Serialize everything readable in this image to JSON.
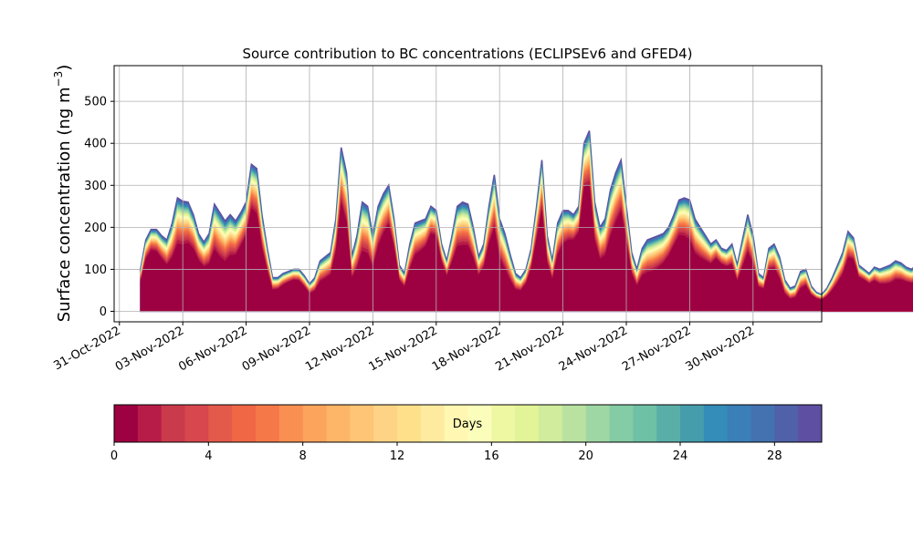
{
  "chart_data": {
    "type": "area",
    "title": "Source contribution to BC concentrations (ECLIPSEv6 and GFED4)",
    "ylabel": "Surface concentration (ng m",
    "ylabel_sup": "−3",
    "ylabel_close": ")",
    "xlabel": "",
    "x_start": "2022-11-01T00:00",
    "x_step_hours": 6,
    "xlim": [
      "2022-10-30T18:00",
      "2022-12-03T06:00"
    ],
    "ylim": [
      -25,
      585
    ],
    "yticks": [
      0,
      100,
      200,
      300,
      400,
      500
    ],
    "xticks": [
      "2022-10-31",
      "2022-11-03",
      "2022-11-06",
      "2022-11-09",
      "2022-11-12",
      "2022-11-15",
      "2022-11-18",
      "2022-11-21",
      "2022-11-24",
      "2022-11-27",
      "2022-11-30"
    ],
    "xtick_labels": [
      "31-Oct-2022",
      "03-Nov-2022",
      "06-Nov-2022",
      "09-Nov-2022",
      "12-Nov-2022",
      "15-Nov-2022",
      "18-Nov-2022",
      "21-Nov-2022",
      "24-Nov-2022",
      "27-Nov-2022",
      "30-Nov-2022"
    ],
    "grid": true,
    "total": [
      100,
      170,
      195,
      195,
      180,
      170,
      210,
      270,
      262,
      260,
      230,
      185,
      165,
      185,
      255,
      235,
      215,
      230,
      215,
      235,
      260,
      350,
      340,
      230,
      150,
      80,
      80,
      90,
      95,
      100,
      100,
      85,
      65,
      80,
      120,
      130,
      140,
      220,
      390,
      330,
      130,
      180,
      260,
      250,
      180,
      250,
      280,
      300,
      220,
      110,
      90,
      160,
      210,
      215,
      220,
      250,
      240,
      160,
      120,
      180,
      250,
      260,
      255,
      200,
      130,
      160,
      250,
      325,
      220,
      185,
      135,
      90,
      80,
      100,
      150,
      250,
      360,
      180,
      120,
      210,
      240,
      240,
      230,
      250,
      400,
      430,
      260,
      200,
      220,
      290,
      330,
      360,
      250,
      140,
      100,
      150,
      170,
      175,
      180,
      185,
      200,
      230,
      265,
      270,
      265,
      220,
      200,
      180,
      160,
      170,
      150,
      145,
      160,
      110,
      170,
      230,
      180,
      90,
      80,
      150,
      160,
      130,
      75,
      55,
      60,
      95,
      100,
      60,
      45,
      40,
      55,
      80,
      110,
      140,
      190,
      175,
      110,
      100,
      90,
      105,
      100,
      105,
      110,
      120,
      115,
      105,
      100,
      110,
      120,
      125,
      120,
      140,
      90,
      50,
      40,
      40,
      40,
      50,
      80,
      160,
      90,
      90,
      80,
      85,
      100,
      95,
      80,
      100,
      150,
      190,
      290,
      320,
      180,
      150,
      130,
      100,
      140,
      100,
      95,
      150,
      220,
      330,
      420,
      530,
      440,
      250,
      220,
      130,
      100,
      110,
      150,
      250,
      330,
      260,
      150,
      110,
      100,
      100,
      120,
      210,
      250,
      290,
      320,
      325,
      350,
      380,
      410
    ],
    "colorbar": {
      "label": "Days",
      "min": 0,
      "max": 30,
      "ticks": [
        0,
        4,
        8,
        12,
        16,
        20,
        24,
        28
      ],
      "colors": [
        "#9e0142",
        "#b71c48",
        "#c93a4b",
        "#d8474d",
        "#e35a4a",
        "#ef6745",
        "#f57848",
        "#f98f51",
        "#fca35c",
        "#fdb567",
        "#fec576",
        "#fed385",
        "#fee08b",
        "#feeba0",
        "#fff7b2",
        "#fbfdbb",
        "#eef8a3",
        "#e2f398",
        "#d0ec9c",
        "#b9e2a0",
        "#9fd7a4",
        "#84cca5",
        "#6fc1a5",
        "#5aaea8",
        "#459dab",
        "#348cb9",
        "#3a7fb8",
        "#4472b1",
        "#5061a9",
        "#5e4fa2"
      ]
    }
  }
}
